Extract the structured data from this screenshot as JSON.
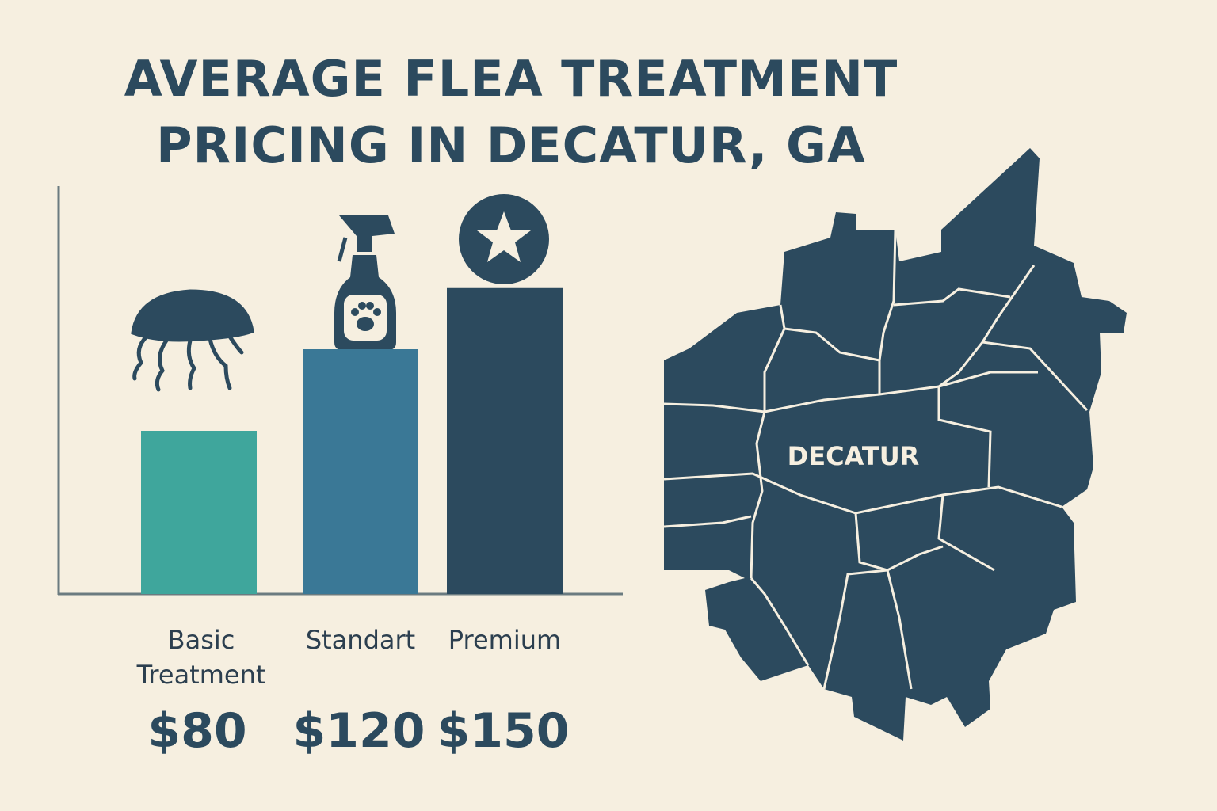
{
  "chart_data": {
    "type": "bar",
    "title": "AVERAGE FLEA TREATMENT PRICING IN DECATUR, GA",
    "categories": [
      "Basic Treatment",
      "Standart",
      "Premium"
    ],
    "values": [
      80,
      120,
      150
    ],
    "value_labels": [
      "$80",
      "$120",
      "$150"
    ],
    "colors": [
      "#3fa69c",
      "#3a7896",
      "#2c4a5e"
    ],
    "ylim": [
      0,
      200
    ],
    "map_label": "DECATUR"
  }
}
